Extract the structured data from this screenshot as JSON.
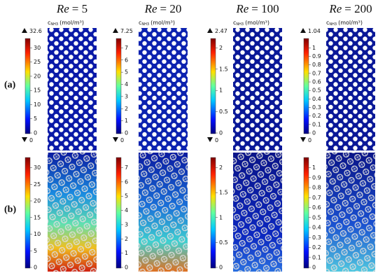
{
  "row_labels": [
    "(a)",
    "(b)"
  ],
  "columns": [
    {
      "symbol": "Re",
      "value": "= 5",
      "unit_symbol": "c",
      "unit_sub": "NH3",
      "unit": "(mol/m³)",
      "max": "32.6",
      "min": "0",
      "ticks": [
        "0",
        "5",
        "10",
        "15",
        "20",
        "25",
        "30"
      ]
    },
    {
      "symbol": "Re",
      "value": "= 20",
      "unit_symbol": "c",
      "unit_sub": "NH3",
      "unit": "(mol/m³)",
      "max": "7.25",
      "min": "0",
      "ticks": [
        "0",
        "1",
        "2",
        "3",
        "4",
        "5",
        "6",
        "7"
      ]
    },
    {
      "symbol": "Re",
      "value": "= 100",
      "unit_symbol": "c",
      "unit_sub": "NH3",
      "unit": "(mol/m³)",
      "max": "2.47",
      "min": "0",
      "ticks": [
        "0",
        "0.5",
        "1",
        "1.5",
        "2"
      ]
    },
    {
      "symbol": "Re",
      "value": "= 200",
      "unit_symbol": "c",
      "unit_sub": "NH3",
      "unit": "(mol/m³)",
      "max": "1.04",
      "min": "0",
      "ticks": [
        "0",
        "0.1",
        "0.2",
        "0.3",
        "0.4",
        "0.5",
        "0.6",
        "0.7",
        "0.8",
        "0.9",
        "1"
      ]
    }
  ]
}
